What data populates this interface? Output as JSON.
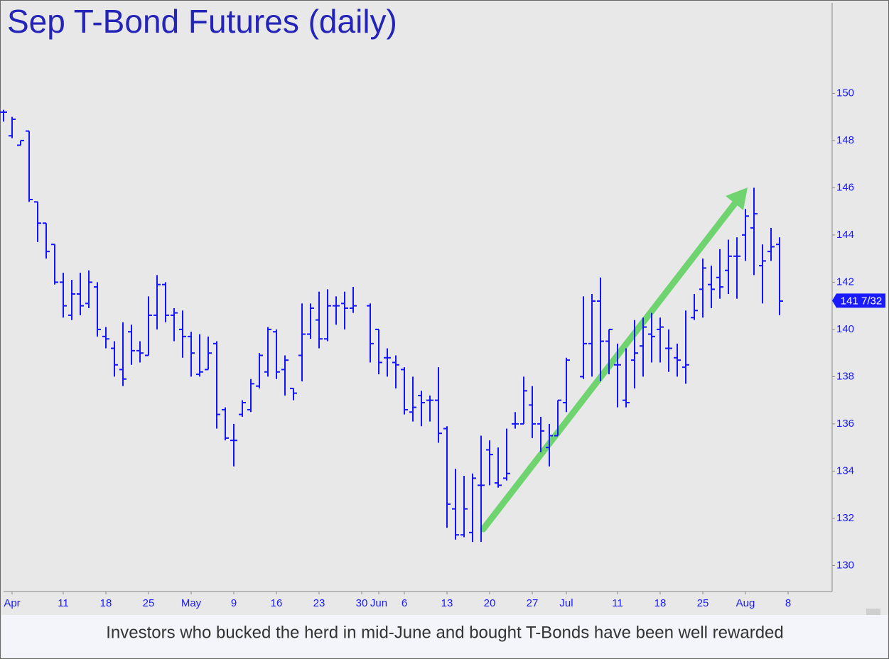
{
  "chart_data": {
    "type": "ohlc",
    "title": "Sep T-Bond Futures (daily)",
    "caption": "Investors who bucked the herd in mid-June and bought T-Bonds have been well rewarded",
    "categories": [
      null,
      "Apr",
      null,
      null,
      null,
      null,
      null,
      "11",
      null,
      null,
      null,
      null,
      "18",
      null,
      null,
      null,
      null,
      "25",
      null,
      null,
      null,
      null,
      "May",
      null,
      null,
      null,
      null,
      "9",
      null,
      null,
      null,
      null,
      "16",
      null,
      null,
      null,
      null,
      "23",
      null,
      null,
      null,
      null,
      "30",
      null,
      "Jun",
      null,
      null,
      "6",
      null,
      null,
      null,
      null,
      "13",
      null,
      null,
      null,
      null,
      "20",
      null,
      null,
      null,
      null,
      "27",
      null,
      null,
      null,
      "Jul",
      null,
      null,
      null,
      null,
      null,
      "11",
      null,
      null,
      null,
      null,
      "18",
      null,
      null,
      null,
      null,
      "25",
      null,
      null,
      null,
      null,
      "Aug",
      null,
      null,
      null,
      null,
      "8"
    ],
    "color": "#1414ff",
    "open": [
      149.2,
      148.2,
      147.8,
      148.4,
      145.4,
      144.5,
      143.6,
      142.0,
      140.6,
      141.5,
      141.1,
      141.8,
      139.7,
      139.2,
      138.3,
      139.9,
      139.1,
      138.9,
      140.6,
      141.9,
      140.6,
      140.0,
      139.7,
      138.1,
      138.3,
      139.4,
      136.6,
      135.3,
      136.4,
      136.6,
      137.6,
      138.2,
      139.9,
      138.3,
      137.5,
      138.9,
      139.8,
      140.4,
      139.6,
      141.0,
      141.1,
      140.9,
      null,
      141.0,
      140.0,
      138.8,
      138.6,
      138.3,
      136.5,
      137.2,
      137.0,
      137.0,
      135.8,
      132.4,
      131.3,
      131.4,
      133.4,
      134.9,
      133.5,
      133.7,
      136.0,
      136.0,
      136.8,
      136.0,
      135.0,
      135.5,
      136.9,
      null,
      138.0,
      139.4,
      141.2,
      139.5,
      138.5,
      137.0,
      138.7,
      139.3,
      139.8,
      140.0,
      139.2,
      138.8,
      138.4,
      140.5,
      141.7,
      141.9,
      142.2,
      142.5,
      143.1,
      144.0,
      144.3,
      142.7,
      143.3,
      143.6,
      null
    ],
    "high": [
      149.3,
      149.0,
      148.0,
      148.4,
      145.4,
      144.5,
      143.6,
      142.4,
      142.1,
      142.4,
      142.5,
      142.0,
      140.1,
      139.5,
      140.3,
      140.2,
      139.5,
      141.4,
      142.3,
      142.0,
      140.9,
      140.8,
      139.9,
      139.8,
      139.7,
      139.5,
      136.7,
      136.0,
      137.0,
      137.9,
      139.0,
      140.1,
      140.0,
      138.9,
      137.5,
      141.1,
      141.1,
      141.6,
      141.7,
      141.4,
      141.6,
      141.8,
      null,
      141.1,
      140.0,
      139.2,
      138.9,
      138.4,
      138.0,
      137.4,
      137.2,
      138.4,
      135.9,
      134.1,
      133.8,
      133.9,
      135.5,
      135.3,
      135.0,
      135.8,
      136.5,
      138.0,
      137.6,
      136.3,
      136.0,
      137.0,
      138.8,
      null,
      141.4,
      141.5,
      142.2,
      140.0,
      139.4,
      139.2,
      140.4,
      140.5,
      140.7,
      140.5,
      140.0,
      139.4,
      140.8,
      141.5,
      143.0,
      142.7,
      143.4,
      143.8,
      143.9,
      145.1,
      146.0,
      143.6,
      144.3,
      143.9,
      null
    ],
    "low": [
      148.8,
      148.1,
      147.8,
      145.4,
      143.7,
      143.0,
      141.9,
      140.5,
      140.4,
      140.6,
      140.9,
      139.7,
      139.2,
      138.0,
      137.6,
      138.5,
      138.6,
      138.9,
      140.0,
      140.3,
      139.5,
      138.8,
      138.0,
      138.0,
      138.3,
      135.8,
      135.3,
      134.2,
      136.3,
      136.5,
      137.5,
      138.0,
      137.9,
      137.2,
      137.0,
      137.8,
      139.6,
      139.2,
      139.5,
      140.2,
      140.0,
      140.7,
      null,
      138.6,
      138.1,
      138.0,
      137.5,
      136.4,
      136.1,
      135.9,
      136.1,
      135.2,
      131.6,
      131.1,
      131.2,
      131.0,
      131.0,
      133.4,
      133.3,
      133.6,
      135.8,
      136.0,
      135.4,
      134.8,
      134.2,
      135.5,
      136.5,
      null,
      137.9,
      138.0,
      137.8,
      138.1,
      136.7,
      136.7,
      137.5,
      138.0,
      138.6,
      138.6,
      138.2,
      138.0,
      137.7,
      140.4,
      140.5,
      140.9,
      141.3,
      141.5,
      141.3,
      142.9,
      142.3,
      141.1,
      142.9,
      140.6,
      null
    ],
    "close": [
      149.2,
      148.9,
      148.0,
      145.5,
      144.5,
      143.3,
      142.0,
      141.0,
      141.5,
      141.0,
      142.0,
      140.0,
      139.6,
      138.5,
      137.9,
      139.1,
      139.0,
      140.6,
      141.9,
      140.6,
      140.7,
      139.7,
      139.0,
      138.2,
      139.0,
      136.4,
      135.4,
      135.3,
      136.9,
      137.7,
      138.9,
      140.0,
      138.2,
      138.7,
      137.3,
      139.8,
      140.9,
      139.6,
      141.0,
      141.0,
      140.9,
      141.0,
      null,
      139.4,
      138.6,
      138.8,
      138.5,
      136.6,
      136.7,
      136.9,
      137.0,
      135.6,
      132.6,
      131.3,
      132.4,
      133.7,
      133.4,
      134.7,
      133.4,
      133.9,
      136.0,
      137.4,
      136.0,
      135.7,
      135.5,
      137.0,
      138.7,
      null,
      139.4,
      141.2,
      139.5,
      140.0,
      138.5,
      136.9,
      139.0,
      140.1,
      139.7,
      140.1,
      139.2,
      138.7,
      138.5,
      140.8,
      142.6,
      141.7,
      141.8,
      143.1,
      143.1,
      144.8,
      144.9,
      142.9,
      143.5,
      141.2,
      null
    ],
    "last_price": {
      "value": 141.21875,
      "label": "141 7/32"
    },
    "ylim": [
      128.9,
      153.8
    ],
    "yticks": [
      130,
      132,
      134,
      136,
      138,
      140,
      142,
      144,
      146,
      148,
      150
    ],
    "grid": false
  }
}
